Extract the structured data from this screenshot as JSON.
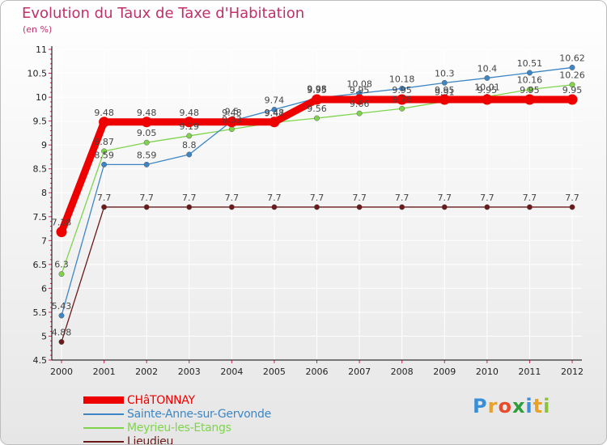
{
  "chart_data": {
    "type": "line",
    "title": "Evolution du Taux de Taxe d'Habitation",
    "subtitle": "(en %)",
    "xlabel": "",
    "ylabel": "",
    "ylim": [
      4.5,
      11
    ],
    "y_ticks": [
      "4.5",
      "5",
      "5.5",
      "6",
      "6.5",
      "7",
      "7.5",
      "8",
      "8.5",
      "9",
      "9.5",
      "10",
      "10.5",
      "11"
    ],
    "categories": [
      "2000",
      "2001",
      "2002",
      "2003",
      "2004",
      "2005",
      "2006",
      "2007",
      "2008",
      "2009",
      "2010",
      "2011",
      "2012"
    ],
    "grid": true,
    "legend_position": "bottom-left",
    "series": [
      {
        "name": "CHâTONNAY",
        "color": "#ee0000",
        "values": [
          7.18,
          9.48,
          9.48,
          9.48,
          9.48,
          9.48,
          9.95,
          9.95,
          9.95,
          9.95,
          9.95,
          9.95,
          9.95
        ],
        "labels": [
          "7.18",
          "9.48",
          "9.48",
          "9.48",
          "9.48",
          "9.48",
          "9.95",
          "9.95",
          "9.95",
          "9.95",
          "9.95",
          "9.95",
          "9.95"
        ]
      },
      {
        "name": "Sainte-Anne-sur-Gervonde",
        "color": "#3d86c6",
        "values": [
          5.43,
          8.59,
          8.59,
          8.8,
          9.5,
          9.74,
          9.98,
          10.08,
          10.18,
          10.3,
          10.4,
          10.51,
          10.62
        ],
        "labels": [
          "5.43",
          "8.59",
          "8.59",
          "8.8",
          "9.5",
          "9.74",
          "9.98",
          "10.08",
          "10.18",
          "10.3",
          "10.4",
          "10.51",
          "10.62"
        ]
      },
      {
        "name": "Meyrieu-les-Etangs",
        "color": "#7fd44c",
        "values": [
          6.3,
          8.87,
          9.05,
          9.19,
          9.33,
          9.47,
          9.56,
          9.66,
          9.76,
          9.91,
          10.01,
          10.16,
          10.26
        ],
        "labels": [
          "6.3",
          "8.87",
          "9.05",
          "9.19",
          "9.33",
          "9.47",
          "9.56",
          "9.66",
          "9.76",
          "9.91",
          "10.01",
          "10.16",
          "10.26"
        ]
      },
      {
        "name": "Lieudieu",
        "color": "#6b1a1a",
        "values": [
          4.88,
          7.7,
          7.7,
          7.7,
          7.7,
          7.7,
          7.7,
          7.7,
          7.7,
          7.7,
          7.7,
          7.7,
          7.7
        ],
        "labels": [
          "4.88",
          "7.7",
          "7.7",
          "7.7",
          "7.7",
          "7.7",
          "7.7",
          "7.7",
          "7.7",
          "7.7",
          "7.7",
          "7.7",
          "7.7"
        ]
      }
    ]
  },
  "logo": {
    "letters": [
      "P",
      "r",
      "o",
      "x",
      "i",
      "t",
      "i"
    ],
    "colors": [
      "#3a8fd6",
      "#e8a22a",
      "#e84a2a",
      "#2e9d3a",
      "#3a8fd6",
      "#e8a22a",
      "#8ac43a"
    ]
  }
}
